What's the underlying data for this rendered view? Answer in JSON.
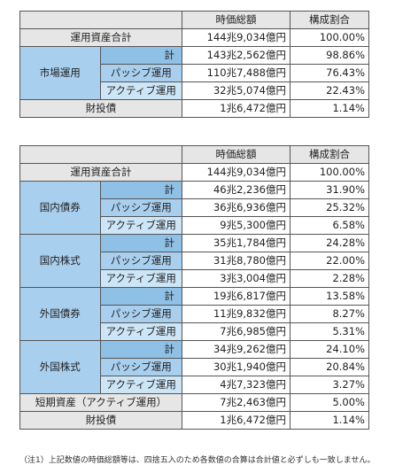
{
  "table1": {
    "headers": {
      "market_value": "時価総額",
      "ratio": "構成割合"
    },
    "total": {
      "label": "運用資産合計",
      "value": "144兆9,034億円",
      "ratio": "100.00%"
    },
    "market_ops": {
      "label": "市場運用",
      "rows": [
        {
          "label": "計",
          "value": "143兆2,562億円",
          "ratio": "98.86%"
        },
        {
          "label": "パッシブ運用",
          "value": "110兆7,488億円",
          "ratio": "76.43%"
        },
        {
          "label": "アクティブ運用",
          "value": "32兆5,074億円",
          "ratio": "22.43%"
        }
      ]
    },
    "fiscal": {
      "label": "財投債",
      "value": "1兆6,472億円",
      "ratio": "1.14%"
    }
  },
  "table2": {
    "headers": {
      "market_value": "時価総額",
      "ratio": "構成割合"
    },
    "total": {
      "label": "運用資産合計",
      "value": "144兆9,034億円",
      "ratio": "100.00%"
    },
    "groups": [
      {
        "label": "国内債券",
        "rows": [
          {
            "label": "計",
            "value": "46兆2,236億円",
            "ratio": "31.90%"
          },
          {
            "label": "パッシブ運用",
            "value": "36兆6,936億円",
            "ratio": "25.32%"
          },
          {
            "label": "アクティブ運用",
            "value": "9兆5,300億円",
            "ratio": "6.58%"
          }
        ]
      },
      {
        "label": "国内株式",
        "rows": [
          {
            "label": "計",
            "value": "35兆1,784億円",
            "ratio": "24.28%"
          },
          {
            "label": "パッシブ運用",
            "value": "31兆8,780億円",
            "ratio": "22.00%"
          },
          {
            "label": "アクティブ運用",
            "value": "3兆3,004億円",
            "ratio": "2.28%"
          }
        ]
      },
      {
        "label": "外国債券",
        "rows": [
          {
            "label": "計",
            "value": "19兆6,817億円",
            "ratio": "13.58%"
          },
          {
            "label": "パッシブ運用",
            "value": "11兆9,832億円",
            "ratio": "8.27%"
          },
          {
            "label": "アクティブ運用",
            "value": "7兆6,985億円",
            "ratio": "5.31%"
          }
        ]
      },
      {
        "label": "外国株式",
        "rows": [
          {
            "label": "計",
            "value": "34兆9,262億円",
            "ratio": "24.10%"
          },
          {
            "label": "パッシブ運用",
            "value": "30兆1,940億円",
            "ratio": "20.84%"
          },
          {
            "label": "アクティブ運用",
            "value": "4兆7,323億円",
            "ratio": "3.27%"
          }
        ]
      }
    ],
    "short_term": {
      "label": "短期資産（アクティブ運用）",
      "value": "7兆2,463億円",
      "ratio": "5.00%"
    },
    "fiscal": {
      "label": "財投債",
      "value": "1兆6,472億円",
      "ratio": "1.14%"
    }
  },
  "footnote": "（注1）上記数値の時価総額等は、四捨五入のため各数値の合算は合計値と必ずしも一致しません。"
}
